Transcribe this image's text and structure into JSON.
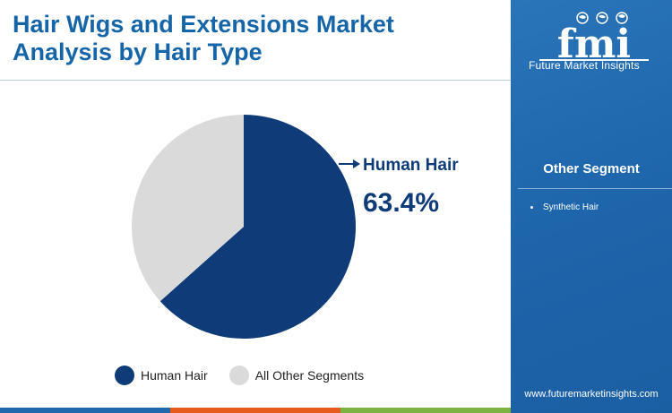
{
  "header": {
    "title": "Hair Wigs and Extensions Market Analysis by Hair Type"
  },
  "chart_data": {
    "type": "pie",
    "categories": [
      "Human Hair",
      "All Other Segments"
    ],
    "values": [
      63.4,
      36.6
    ],
    "colors": [
      "#0f3b78",
      "#dadada"
    ],
    "callout": {
      "label": "Human Hair",
      "value": "63.4%"
    },
    "legend": {
      "placement": "bottom",
      "entries": [
        "Human Hair",
        "All Other Segments"
      ]
    }
  },
  "side_panel": {
    "logo_text": "fmi",
    "logo_caption": "Future Market Insights",
    "heading": "Other Segment",
    "items": [
      "Synthetic Hair"
    ],
    "website": "www.futuremarketinsights.com"
  },
  "colors": {
    "title": "#1565a8",
    "panel": "#1f68ae",
    "bottom_bar": [
      "#1f68ae",
      "#e65a1e",
      "#7cb342"
    ]
  }
}
